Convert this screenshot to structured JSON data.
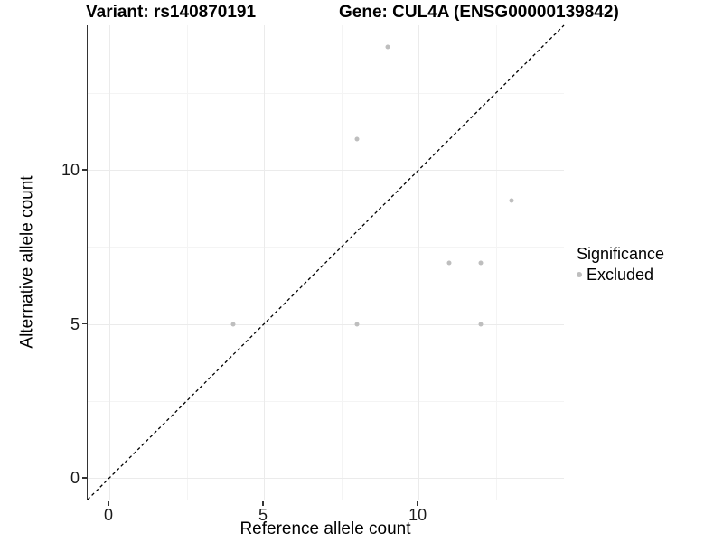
{
  "chart_data": {
    "type": "scatter",
    "title_left": "Variant: rs140870191",
    "title_right": "Gene: CUL4A (ENSG00000139842)",
    "xlabel": "Reference allele count",
    "ylabel": "Alternative allele count",
    "xlim": [
      -0.7,
      14.7
    ],
    "ylim": [
      -0.7,
      14.7
    ],
    "x_major_ticks": [
      0,
      5,
      10
    ],
    "y_major_ticks": [
      0,
      5,
      10
    ],
    "x_minor_gridlines": [
      2.5,
      7.5,
      12.5
    ],
    "y_minor_gridlines": [
      2.5,
      7.5,
      12.5
    ],
    "grid": "on",
    "series": [
      {
        "name": "Excluded",
        "color": "#bebebe",
        "points": [
          [
            9,
            14
          ],
          [
            8,
            11
          ],
          [
            13,
            9
          ],
          [
            11,
            7
          ],
          [
            12,
            7
          ],
          [
            4,
            5
          ],
          [
            8,
            5
          ],
          [
            12,
            5
          ]
        ]
      }
    ],
    "identity_line": {
      "style": "dashed",
      "color": "#000000",
      "equation": "y = x"
    },
    "legend": {
      "title": "Significance",
      "position": "right",
      "items": [
        {
          "label": "Excluded",
          "color": "#bebebe"
        }
      ]
    },
    "colors": {
      "grid_major": "#ebebeb",
      "grid_minor": "#f4f4f4",
      "axis_line": "#333333",
      "point": "#bebebe",
      "text": "#000000"
    }
  }
}
